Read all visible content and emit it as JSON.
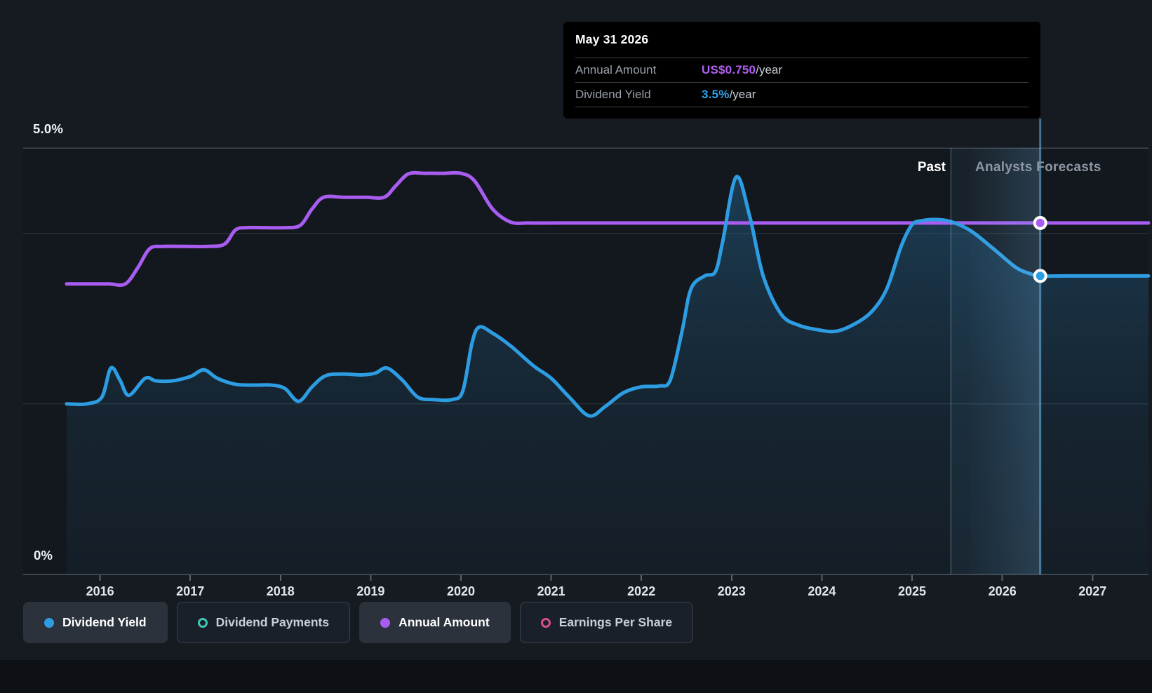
{
  "page": {
    "tooltip": {
      "date": "May 31 2026",
      "rows": [
        {
          "label": "Annual Amount",
          "value": "US$0.750",
          "suffix": "/year",
          "value_color": "#b15ef5"
        },
        {
          "label": "Dividend Yield",
          "value": "3.5%",
          "suffix": "/year",
          "value_color": "#2da4f0"
        }
      ]
    },
    "labels": {
      "past": "Past",
      "forecast": "Analysts Forecasts"
    },
    "y_axis_labels": {
      "top": "5.0%",
      "bottom": "0%"
    },
    "legend": [
      {
        "label": "Dividend Yield",
        "marker": "filled",
        "color": "#2d9de3",
        "active": true
      },
      {
        "label": "Dividend Payments",
        "marker": "hollow",
        "color": "#3fc9b4",
        "active": false
      },
      {
        "label": "Annual Amount",
        "marker": "filled",
        "color": "#a85cf0",
        "active": true
      },
      {
        "label": "Earnings Per Share",
        "marker": "hollow",
        "color": "#d94f8e",
        "active": false
      }
    ]
  },
  "chart_data": {
    "type": "line",
    "title": "Dividend yield and annual amount history with analyst forecasts",
    "x_axis": {
      "range": [
        2015.63,
        2027.62
      ],
      "ticks": [
        2016,
        2017,
        2018,
        2019,
        2020,
        2021,
        2022,
        2023,
        2024,
        2025,
        2026,
        2027
      ]
    },
    "yield_axis": {
      "range": [
        0,
        5
      ],
      "unit": "%",
      "gridlines": [
        5.0,
        4.0,
        2.0
      ],
      "label_top": "5.0%",
      "label_bottom": "0%"
    },
    "amount_axis": {
      "range": [
        0,
        0.91
      ],
      "unit": "US$"
    },
    "grid": true,
    "legend_position": "bottom",
    "series": [
      {
        "id": "dividend_yield",
        "name": "Dividend Yield",
        "color": "#2d9de3",
        "style": "area-line",
        "axis": "yield",
        "points": [
          [
            2015.63,
            2.0
          ],
          [
            2015.85,
            2.0
          ],
          [
            2016.02,
            2.08
          ],
          [
            2016.12,
            2.42
          ],
          [
            2016.22,
            2.28
          ],
          [
            2016.32,
            2.1
          ],
          [
            2016.5,
            2.3
          ],
          [
            2016.62,
            2.27
          ],
          [
            2016.8,
            2.27
          ],
          [
            2017.0,
            2.32
          ],
          [
            2017.15,
            2.4
          ],
          [
            2017.3,
            2.3
          ],
          [
            2017.5,
            2.23
          ],
          [
            2017.7,
            2.22
          ],
          [
            2017.9,
            2.22
          ],
          [
            2018.05,
            2.18
          ],
          [
            2018.2,
            2.03
          ],
          [
            2018.35,
            2.2
          ],
          [
            2018.5,
            2.33
          ],
          [
            2018.7,
            2.35
          ],
          [
            2018.9,
            2.34
          ],
          [
            2019.05,
            2.36
          ],
          [
            2019.18,
            2.42
          ],
          [
            2019.35,
            2.28
          ],
          [
            2019.52,
            2.08
          ],
          [
            2019.7,
            2.05
          ],
          [
            2019.9,
            2.05
          ],
          [
            2020.02,
            2.15
          ],
          [
            2020.12,
            2.7
          ],
          [
            2020.2,
            2.9
          ],
          [
            2020.35,
            2.83
          ],
          [
            2020.55,
            2.68
          ],
          [
            2020.8,
            2.45
          ],
          [
            2021.0,
            2.3
          ],
          [
            2021.2,
            2.08
          ],
          [
            2021.42,
            1.86
          ],
          [
            2021.6,
            1.97
          ],
          [
            2021.8,
            2.13
          ],
          [
            2022.0,
            2.2
          ],
          [
            2022.2,
            2.21
          ],
          [
            2022.32,
            2.28
          ],
          [
            2022.45,
            2.85
          ],
          [
            2022.55,
            3.35
          ],
          [
            2022.7,
            3.5
          ],
          [
            2022.82,
            3.55
          ],
          [
            2022.9,
            3.9
          ],
          [
            2023.05,
            4.66
          ],
          [
            2023.2,
            4.2
          ],
          [
            2023.35,
            3.5
          ],
          [
            2023.55,
            3.05
          ],
          [
            2023.75,
            2.92
          ],
          [
            2023.95,
            2.87
          ],
          [
            2024.15,
            2.85
          ],
          [
            2024.35,
            2.93
          ],
          [
            2024.55,
            3.08
          ],
          [
            2024.72,
            3.35
          ],
          [
            2024.88,
            3.85
          ],
          [
            2025.0,
            4.1
          ],
          [
            2025.12,
            4.15
          ],
          [
            2025.3,
            4.16
          ],
          [
            2025.45,
            4.13
          ],
          [
            2025.65,
            4.03
          ],
          [
            2025.9,
            3.82
          ],
          [
            2026.15,
            3.6
          ],
          [
            2026.3,
            3.53
          ],
          [
            2026.42,
            3.5
          ],
          [
            2026.7,
            3.5
          ],
          [
            2027.1,
            3.5
          ],
          [
            2027.62,
            3.5
          ]
        ]
      },
      {
        "id": "annual_amount",
        "name": "Annual Amount",
        "color": "#a85cf0",
        "style": "line",
        "axis": "amount",
        "points": [
          [
            2015.63,
            0.62
          ],
          [
            2015.9,
            0.62
          ],
          [
            2016.1,
            0.62
          ],
          [
            2016.28,
            0.62
          ],
          [
            2016.42,
            0.655
          ],
          [
            2016.55,
            0.695
          ],
          [
            2016.7,
            0.7
          ],
          [
            2016.95,
            0.7
          ],
          [
            2017.2,
            0.7
          ],
          [
            2017.38,
            0.705
          ],
          [
            2017.5,
            0.735
          ],
          [
            2017.62,
            0.74
          ],
          [
            2017.85,
            0.74
          ],
          [
            2018.05,
            0.74
          ],
          [
            2018.22,
            0.745
          ],
          [
            2018.35,
            0.78
          ],
          [
            2018.48,
            0.805
          ],
          [
            2018.7,
            0.805
          ],
          [
            2018.95,
            0.805
          ],
          [
            2019.15,
            0.805
          ],
          [
            2019.28,
            0.83
          ],
          [
            2019.42,
            0.855
          ],
          [
            2019.6,
            0.856
          ],
          [
            2019.8,
            0.856
          ],
          [
            2020.0,
            0.856
          ],
          [
            2020.15,
            0.84
          ],
          [
            2020.35,
            0.78
          ],
          [
            2020.55,
            0.752
          ],
          [
            2020.75,
            0.75
          ],
          [
            2021.1,
            0.75
          ],
          [
            2021.6,
            0.75
          ],
          [
            2022.2,
            0.75
          ],
          [
            2023.0,
            0.75
          ],
          [
            2024.0,
            0.75
          ],
          [
            2025.0,
            0.75
          ],
          [
            2025.8,
            0.75
          ],
          [
            2026.42,
            0.75
          ],
          [
            2027.0,
            0.75
          ],
          [
            2027.62,
            0.75
          ]
        ]
      }
    ],
    "inactive_series": [
      {
        "id": "dividend_payments",
        "name": "Dividend Payments",
        "color": "#3fc9b4"
      },
      {
        "id": "earnings_per_share",
        "name": "Earnings Per Share",
        "color": "#d94f8e"
      }
    ],
    "forecast": {
      "divider_year": 2025.43,
      "band": [
        2025.64,
        2026.42
      ],
      "crosshair_year": 2026.42
    },
    "hover_date": "May 31 2026",
    "markers": [
      {
        "series": "annual_amount",
        "year": 2026.42,
        "value": 0.75,
        "unit": "US$",
        "color": "#a85cf0"
      },
      {
        "series": "dividend_yield",
        "year": 2026.42,
        "value": 3.5,
        "unit": "%",
        "color": "#2d9de3"
      }
    ]
  }
}
